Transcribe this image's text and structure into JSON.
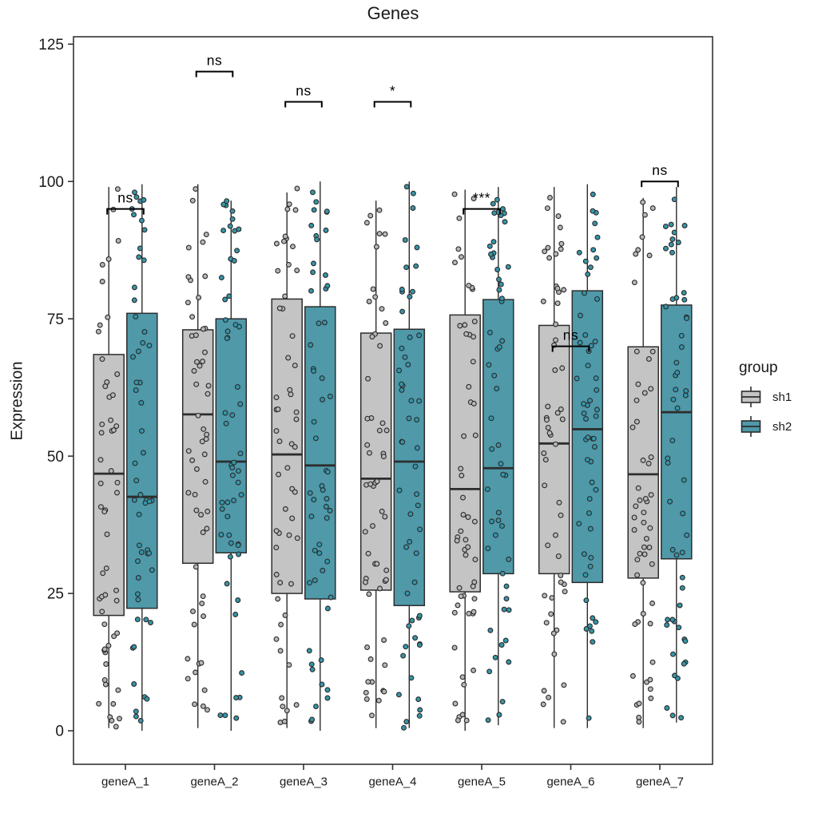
{
  "title": "Genes",
  "axes": {
    "y_label": "Expression",
    "y_ticks": [
      0,
      25,
      50,
      75,
      100,
      125
    ],
    "x_tick_labels": [
      "geneA_1",
      "geneA_2",
      "geneA_3",
      "geneA_4",
      "geneA_5",
      "geneA_6",
      "geneA_7"
    ]
  },
  "legend": {
    "title": "group",
    "entries": [
      {
        "label": "sh1",
        "color": "#c4c4c4"
      },
      {
        "label": "sh2",
        "color": "#4f99a9"
      }
    ]
  },
  "colors": {
    "stroke": "#2d2d2d",
    "panel_border": "#333333",
    "text": "#1a1a1a",
    "sh1_fill": "#c4c4c4",
    "sh2_fill": "#4f99a9",
    "sh1_point": "#b8b8b8",
    "sh2_point": "#3596aa"
  },
  "chart_data": {
    "type": "boxplot-with-jitter",
    "title": "Genes",
    "ylabel": "Expression",
    "categories": [
      "geneA_1",
      "geneA_2",
      "geneA_3",
      "geneA_4",
      "geneA_5",
      "geneA_6",
      "geneA_7"
    ],
    "ylim": [
      -6.1,
      126.35
    ],
    "y_ticks": [
      0,
      25,
      50,
      75,
      100,
      125
    ],
    "grid": false,
    "legend_position": "right",
    "series": [
      {
        "name": "sh1",
        "color": "#c4c4c4",
        "point_color": "#b8b8b8",
        "boxes": [
          {
            "min": 0.5,
            "q1": 21.0,
            "median": 46.8,
            "q3": 68.5,
            "max": 99.0
          },
          {
            "min": 0.5,
            "q1": 30.5,
            "median": 57.6,
            "q3": 73.0,
            "max": 99.5
          },
          {
            "min": 0.5,
            "q1": 25.0,
            "median": 50.3,
            "q3": 78.6,
            "max": 98.0
          },
          {
            "min": 0.5,
            "q1": 25.6,
            "median": 45.9,
            "q3": 72.4,
            "max": 96.5
          },
          {
            "min": 0.0,
            "q1": 25.3,
            "median": 44.0,
            "q3": 75.7,
            "max": 98.5
          },
          {
            "min": 0.5,
            "q1": 28.6,
            "median": 52.3,
            "q3": 73.8,
            "max": 99.0
          },
          {
            "min": 0.5,
            "q1": 27.8,
            "median": 46.7,
            "q3": 69.9,
            "max": 97.0
          }
        ]
      },
      {
        "name": "sh2",
        "color": "#4f99a9",
        "point_color": "#3596aa",
        "boxes": [
          {
            "min": 0.0,
            "q1": 22.3,
            "median": 42.6,
            "q3": 76.0,
            "max": 99.5
          },
          {
            "min": 0.0,
            "q1": 32.4,
            "median": 49.0,
            "q3": 75.0,
            "max": 96.5
          },
          {
            "min": 0.0,
            "q1": 24.0,
            "median": 48.3,
            "q3": 77.2,
            "max": 100.0
          },
          {
            "min": 0.5,
            "q1": 22.8,
            "median": 49.0,
            "q3": 73.1,
            "max": 100.0
          },
          {
            "min": 1.0,
            "q1": 28.6,
            "median": 47.8,
            "q3": 78.5,
            "max": 99.0
          },
          {
            "min": 0.5,
            "q1": 27.0,
            "median": 54.9,
            "q3": 80.1,
            "max": 99.5
          },
          {
            "min": 1.5,
            "q1": 31.3,
            "median": 58.0,
            "q3": 77.5,
            "max": 99.0
          }
        ]
      }
    ],
    "significance": [
      {
        "category": "geneA_1",
        "label": "ns",
        "y": 95
      },
      {
        "category": "geneA_2",
        "label": "ns",
        "y": 120
      },
      {
        "category": "geneA_3",
        "label": "ns",
        "y": 114.5
      },
      {
        "category": "geneA_4",
        "label": "*",
        "y": 114.5
      },
      {
        "category": "geneA_5",
        "label": "***",
        "y": 95
      },
      {
        "category": "geneA_6",
        "label": "ns",
        "y": 70
      },
      {
        "category": "geneA_7",
        "label": "ns",
        "y": 100
      }
    ],
    "points_per_group": 55,
    "jitter_seed": 42
  }
}
